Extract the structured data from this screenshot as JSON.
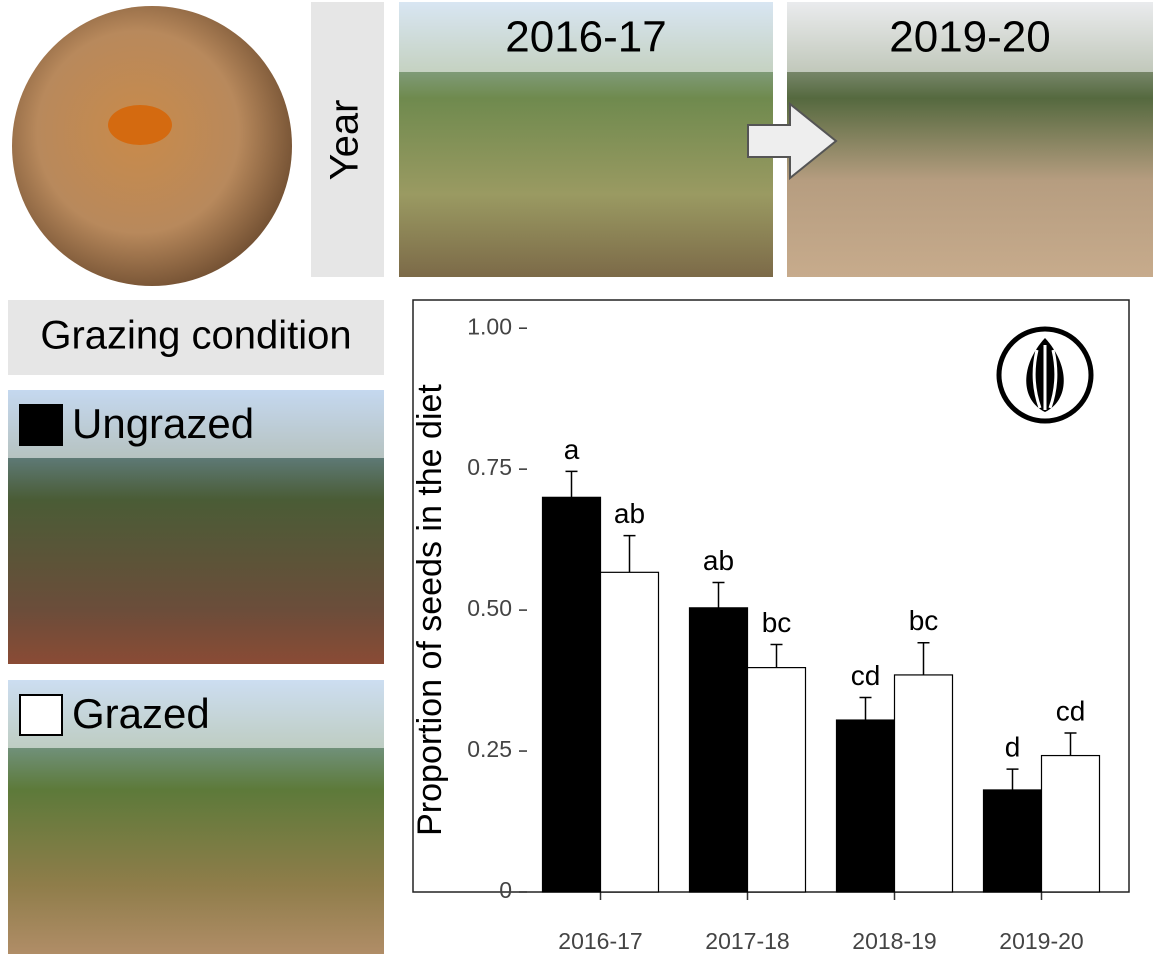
{
  "panels": {
    "year_label": "Year",
    "photo_years": [
      "2016-17",
      "2019-20"
    ],
    "grazing_label": "Grazing condition"
  },
  "chart_data": {
    "type": "bar",
    "y_label": "Proportion of seeds in the diet",
    "categories": [
      "2016-17",
      "2017-18",
      "2018-19",
      "2019-20"
    ],
    "series": [
      {
        "name": "Ungrazed",
        "color": "#000000",
        "values": [
          0.7,
          0.504,
          0.305,
          0.181
        ],
        "errors": [
          0.046,
          0.045,
          0.04,
          0.037
        ],
        "letters": [
          "a",
          "ab",
          "cd",
          "d"
        ]
      },
      {
        "name": "Grazed",
        "color": "#ffffff",
        "values": [
          0.567,
          0.398,
          0.385,
          0.242
        ],
        "errors": [
          0.065,
          0.041,
          0.057,
          0.04
        ],
        "letters": [
          "ab",
          "bc",
          "bc",
          "cd"
        ]
      }
    ],
    "ylim": [
      0,
      1.05
    ],
    "yticks": [
      0,
      0.25,
      {
        "value": 0.5,
        "label": "0.50"
      },
      0.75,
      {
        "value": 1,
        "label": "1.00"
      }
    ]
  }
}
